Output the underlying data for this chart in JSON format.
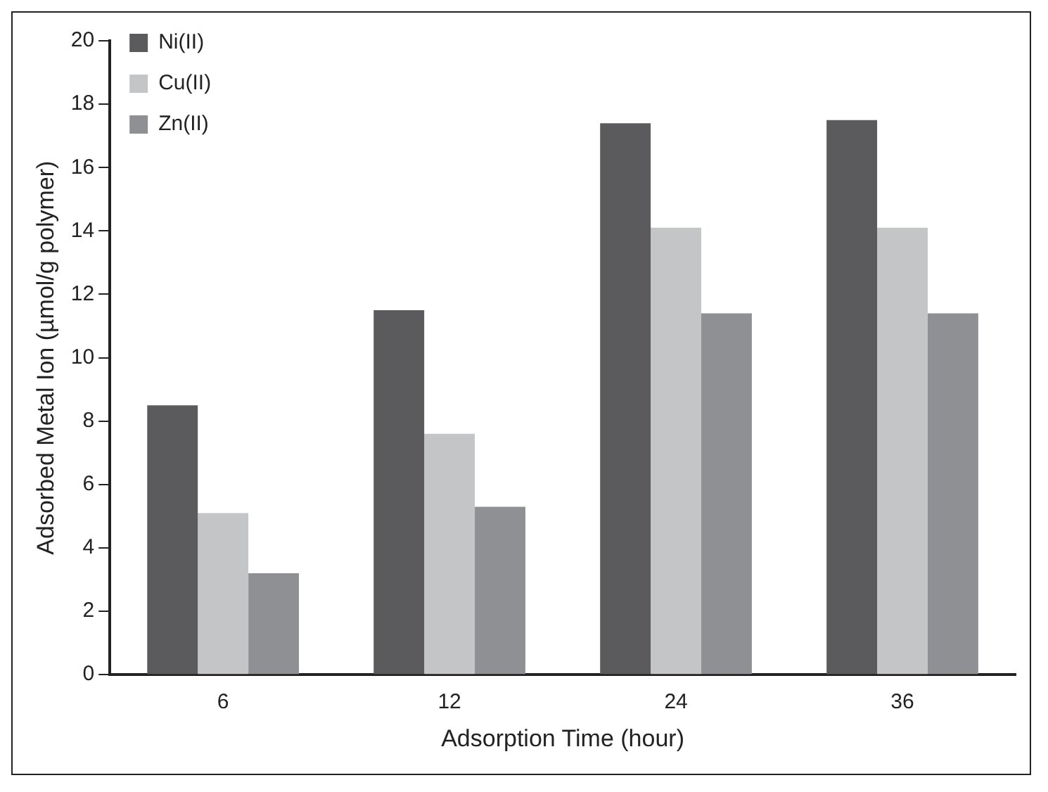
{
  "chart_data": {
    "type": "bar",
    "xlabel": "Adsorption Time (hour)",
    "ylabel": "Adsorbed Metal Ion (µmol/g polymer)",
    "categories": [
      "6",
      "12",
      "24",
      "36"
    ],
    "series": [
      {
        "name": "Ni(II)",
        "color": "#5b5b5d",
        "values": [
          8.5,
          11.5,
          17.4,
          17.5
        ]
      },
      {
        "name": "Cu(II)",
        "color": "#c4c5c7",
        "values": [
          5.1,
          7.6,
          14.1,
          14.1
        ]
      },
      {
        "name": "Zn(II)",
        "color": "#8f9094",
        "values": [
          3.2,
          5.3,
          11.4,
          11.4
        ]
      }
    ],
    "ylim": [
      0,
      20
    ],
    "yticks": [
      0,
      2,
      4,
      6,
      8,
      10,
      12,
      14,
      16,
      18,
      20
    ],
    "grid": false,
    "legend": "top left"
  }
}
